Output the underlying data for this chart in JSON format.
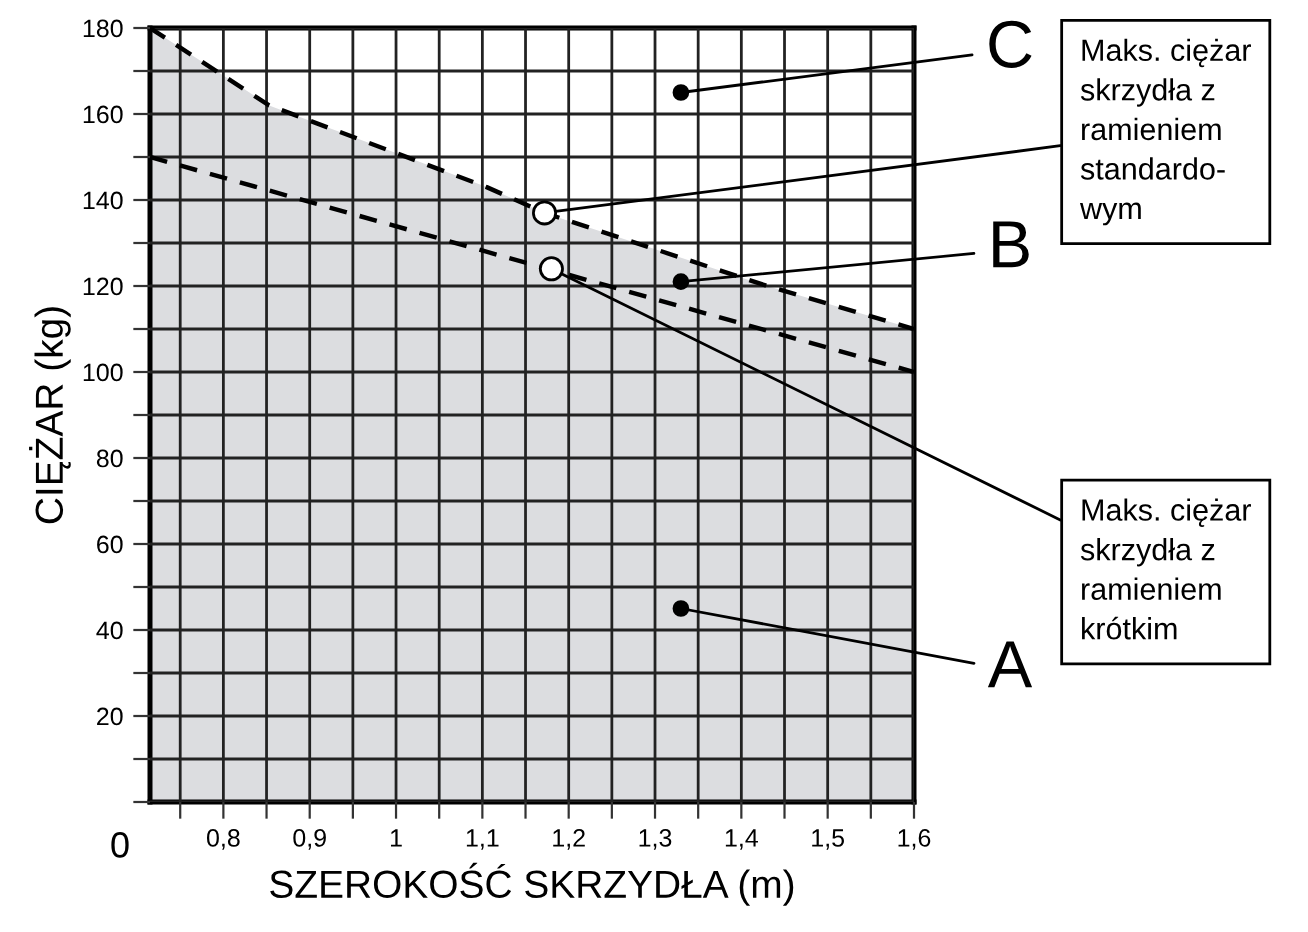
{
  "chart_data": {
    "type": "area",
    "xlabel": "SZEROKOŚĆ SKRZYDŁA (m)",
    "ylabel": "CIĘŻAR (kg)",
    "xlim": [
      0.715,
      1.6
    ],
    "ylim": [
      0,
      180
    ],
    "xticks": [
      {
        "value": 0.75,
        "label": null
      },
      {
        "value": 0.8,
        "label": "0,8"
      },
      {
        "value": 0.85,
        "label": null
      },
      {
        "value": 0.9,
        "label": "0,9"
      },
      {
        "value": 0.95,
        "label": null
      },
      1,
      {
        "value": 1.05,
        "label": null
      },
      {
        "value": 1.1,
        "label": "1,1"
      },
      {
        "value": 1.15,
        "label": null
      },
      {
        "value": 1.2,
        "label": "1,2"
      },
      {
        "value": 1.25,
        "label": null
      },
      {
        "value": 1.3,
        "label": "1,3"
      },
      {
        "value": 1.35,
        "label": null
      },
      {
        "value": 1.4,
        "label": "1,4"
      },
      {
        "value": 1.45,
        "label": null
      },
      {
        "value": 1.5,
        "label": "1,5"
      },
      {
        "value": 1.55,
        "label": null
      },
      {
        "value": 1.6,
        "label": "1,6"
      }
    ],
    "yticks": [
      {
        "value": 0,
        "label": null
      },
      {
        "value": 10,
        "label": null
      },
      20,
      {
        "value": 30,
        "label": null
      },
      40,
      {
        "value": 50,
        "label": null
      },
      60,
      {
        "value": 70,
        "label": null
      },
      80,
      {
        "value": 90,
        "label": null
      },
      100,
      {
        "value": 110,
        "label": null
      },
      120,
      {
        "value": 130,
        "label": null
      },
      140,
      {
        "value": 150,
        "label": null
      },
      160,
      {
        "value": 170,
        "label": null
      },
      180
    ],
    "grid": true,
    "line_style": "dashed",
    "marker": "none",
    "series": [
      {
        "color": "#dcdde0",
        "x": [
          0.715,
          0.853,
          1.105,
          1.172,
          1.43,
          1.6
        ],
        "values": [
          180,
          162,
          143,
          137,
          120,
          110
        ]
      },
      {
        "type": "line",
        "color": "#000000",
        "x": [
          0.715,
          1.6
        ],
        "values": [
          150,
          100
        ]
      }
    ],
    "annotations": [
      "0",
      {
        "text": "C",
        "x": 1.33,
        "y": 165
      },
      {
        "text": "B",
        "x": 1.33,
        "y": 121
      },
      {
        "text": "A",
        "x": 1.33,
        "y": 45
      },
      {
        "text": "Maks. ciężar\nskrzydła z\nramieniem\nstandardo-\nwym",
        "x": 1.172,
        "y": 137
      },
      {
        "text": "Maks. ciężar\nskrzydła z\nramieniem\nkrótkim",
        "x": 1.18,
        "y": 124
      }
    ]
  }
}
